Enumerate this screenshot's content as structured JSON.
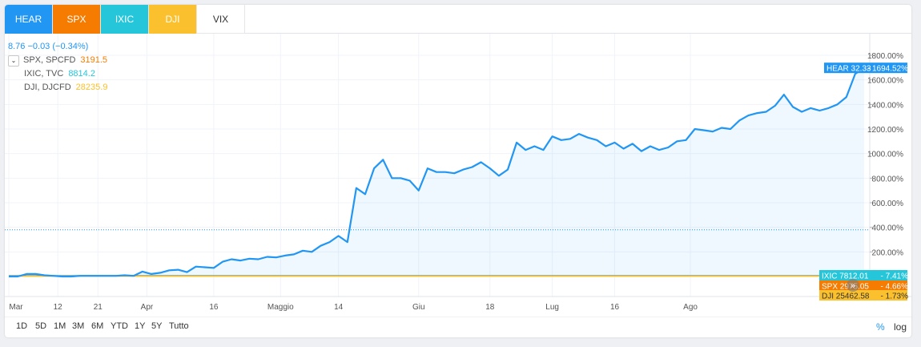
{
  "tabs": [
    {
      "label": "HEAR",
      "color": "#2196f3"
    },
    {
      "label": "SPX",
      "color": "#f57c00"
    },
    {
      "label": "IXIC",
      "color": "#26c6da"
    },
    {
      "label": "DJI",
      "color": "#fbc02d"
    },
    {
      "label": "VIX",
      "color": "#ffffff"
    }
  ],
  "legend": {
    "main": "8.76 −0.03 (−0.34%)",
    "rows": [
      {
        "label": "SPX, SPCFD",
        "value": "3191.5",
        "color": "#f57c00"
      },
      {
        "label": "IXIC, TVC",
        "value": "8814.2",
        "color": "#26c6da"
      },
      {
        "label": "DJI, DJCFD",
        "value": "28235.9",
        "color": "#fbc02d"
      }
    ]
  },
  "chart_data": {
    "type": "line",
    "yaxis": {
      "ticks": [
        "200.00%",
        "400.00%",
        "600.00%",
        "800.00%",
        "1000.00%",
        "1200.00%",
        "1400.00%",
        "1600.00%",
        "1800.00%"
      ],
      "min": 0,
      "max": 1800,
      "scale": "percent"
    },
    "xaxis": {
      "ticks": [
        {
          "label": "Mar",
          "bold": true,
          "x": 0
        },
        {
          "label": "12",
          "bold": false,
          "x": 11
        },
        {
          "label": "21",
          "bold": false,
          "x": 20
        },
        {
          "label": "Apr",
          "bold": true,
          "x": 31
        },
        {
          "label": "16",
          "bold": false,
          "x": 46
        },
        {
          "label": "Maggio",
          "bold": true,
          "x": 61
        },
        {
          "label": "14",
          "bold": false,
          "x": 74
        },
        {
          "label": "Giu",
          "bold": true,
          "x": 92
        },
        {
          "label": "18",
          "bold": false,
          "x": 108
        },
        {
          "label": "Lug",
          "bold": true,
          "x": 122
        },
        {
          "label": "16",
          "bold": false,
          "x": 136
        },
        {
          "label": "Ago",
          "bold": true,
          "x": 153
        }
      ]
    },
    "reference_line": 380,
    "series": [
      {
        "name": "HEAR",
        "color": "#2196f3",
        "points": [
          [
            0,
            0
          ],
          [
            2,
            0
          ],
          [
            4,
            20
          ],
          [
            6,
            20
          ],
          [
            8,
            10
          ],
          [
            10,
            5
          ],
          [
            12,
            0
          ],
          [
            14,
            0
          ],
          [
            16,
            5
          ],
          [
            18,
            5
          ],
          [
            20,
            5
          ],
          [
            22,
            5
          ],
          [
            24,
            5
          ],
          [
            26,
            10
          ],
          [
            28,
            5
          ],
          [
            30,
            40
          ],
          [
            32,
            20
          ],
          [
            34,
            30
          ],
          [
            36,
            50
          ],
          [
            38,
            55
          ],
          [
            40,
            35
          ],
          [
            42,
            80
          ],
          [
            44,
            75
          ],
          [
            46,
            70
          ],
          [
            48,
            120
          ],
          [
            50,
            140
          ],
          [
            52,
            130
          ],
          [
            54,
            145
          ],
          [
            56,
            140
          ],
          [
            58,
            160
          ],
          [
            60,
            155
          ],
          [
            62,
            170
          ],
          [
            64,
            180
          ],
          [
            66,
            210
          ],
          [
            68,
            200
          ],
          [
            70,
            250
          ],
          [
            72,
            280
          ],
          [
            74,
            330
          ],
          [
            76,
            280
          ],
          [
            78,
            720
          ],
          [
            80,
            670
          ],
          [
            82,
            880
          ],
          [
            84,
            950
          ],
          [
            86,
            800
          ],
          [
            88,
            800
          ],
          [
            90,
            780
          ],
          [
            92,
            700
          ],
          [
            94,
            880
          ],
          [
            96,
            850
          ],
          [
            98,
            850
          ],
          [
            100,
            840
          ],
          [
            102,
            870
          ],
          [
            104,
            890
          ],
          [
            106,
            930
          ],
          [
            108,
            880
          ],
          [
            110,
            820
          ],
          [
            112,
            870
          ],
          [
            114,
            1090
          ],
          [
            116,
            1030
          ],
          [
            118,
            1060
          ],
          [
            120,
            1030
          ],
          [
            122,
            1140
          ],
          [
            124,
            1110
          ],
          [
            126,
            1120
          ],
          [
            128,
            1160
          ],
          [
            130,
            1130
          ],
          [
            132,
            1110
          ],
          [
            134,
            1060
          ],
          [
            136,
            1090
          ],
          [
            138,
            1040
          ],
          [
            140,
            1080
          ],
          [
            142,
            1020
          ],
          [
            144,
            1060
          ],
          [
            146,
            1030
          ],
          [
            148,
            1050
          ],
          [
            150,
            1100
          ],
          [
            152,
            1110
          ],
          [
            154,
            1200
          ],
          [
            156,
            1190
          ],
          [
            158,
            1180
          ],
          [
            160,
            1210
          ],
          [
            162,
            1200
          ],
          [
            164,
            1270
          ],
          [
            166,
            1310
          ],
          [
            168,
            1330
          ],
          [
            170,
            1340
          ],
          [
            172,
            1390
          ],
          [
            174,
            1480
          ],
          [
            176,
            1380
          ],
          [
            178,
            1340
          ],
          [
            180,
            1370
          ],
          [
            182,
            1350
          ],
          [
            184,
            1370
          ],
          [
            186,
            1400
          ],
          [
            188,
            1460
          ],
          [
            190,
            1650
          ],
          [
            192,
            1694.52
          ]
        ]
      },
      {
        "name": "IXIC",
        "color": "#26c6da",
        "flat": 7.41
      },
      {
        "name": "SPX",
        "color": "#f57c00",
        "flat": 4.66
      },
      {
        "name": "DJI",
        "color": "#fbc02d",
        "flat": 1.73
      }
    ],
    "labels": [
      {
        "text": "HEAR 32.33",
        "pct": "1694.52%",
        "color": "#2196f3",
        "value": 1694.52
      },
      {
        "text": "IXIC 7812.01",
        "pct": "7.41%",
        "color": "#26c6da",
        "value": 7.41
      },
      {
        "text": "SPX 2975.05",
        "pct": "4.66%",
        "color": "#f57c00",
        "value": 4.66
      },
      {
        "text": "DJI 25462.58",
        "pct": "1.73%",
        "color": "#fbc02d",
        "value": 1.73
      }
    ]
  },
  "ranges": [
    "1D",
    "5D",
    "1M",
    "3M",
    "6M",
    "YTD",
    "1Y",
    "5Y",
    "Tutto"
  ],
  "scale_buttons": {
    "percent": "%",
    "log": "log"
  }
}
